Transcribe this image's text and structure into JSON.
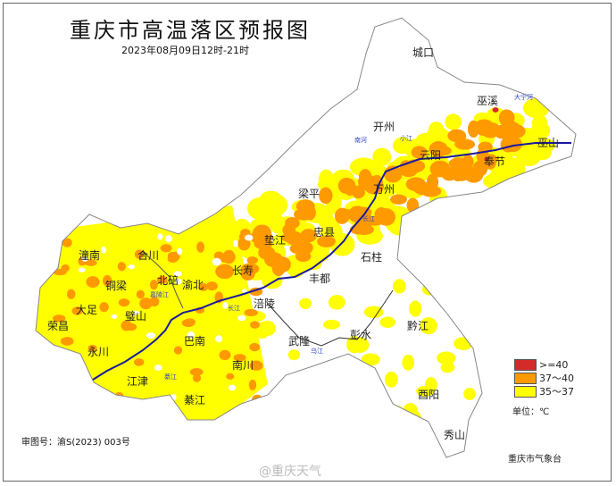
{
  "header": {
    "title": "重庆市高温落区预报图",
    "subtitle": "2023年08月09日12时-21时"
  },
  "legend": {
    "items": [
      {
        "label": ">=40",
        "color": "#d42a2a"
      },
      {
        "label": "37～40",
        "color": "#ff9900"
      },
      {
        "label": "35～37",
        "color": "#ffff00"
      }
    ],
    "unit": "单位：℃"
  },
  "footer": {
    "approval": "审图号：渝S(2023) 003号",
    "agency": "重庆市气象台",
    "watermark": "@重庆天气"
  },
  "colors": {
    "river": "#1a1aa0",
    "boundary": "#aaaaaa",
    "extreme": "#d42a2a",
    "hot": "#ff9900",
    "warm": "#ffff00"
  },
  "districts": [
    "城口",
    "巫溪",
    "开州",
    "云阳",
    "奉节",
    "巫山",
    "万州",
    "梁平",
    "忠县",
    "垫江",
    "石柱",
    "长寿",
    "丰都",
    "涪陵",
    "黔江",
    "彭水",
    "武隆",
    "南川",
    "酉阳",
    "秀山",
    "潼南",
    "合川",
    "铜梁",
    "北碚",
    "渝北",
    "大足",
    "荣昌",
    "璧山",
    "永川",
    "巴南",
    "江津",
    "綦江"
  ],
  "rivers": [
    "长江",
    "长江",
    "乌江",
    "嘉陵江",
    "大宁河",
    "小江",
    "南河",
    "綦江"
  ]
}
